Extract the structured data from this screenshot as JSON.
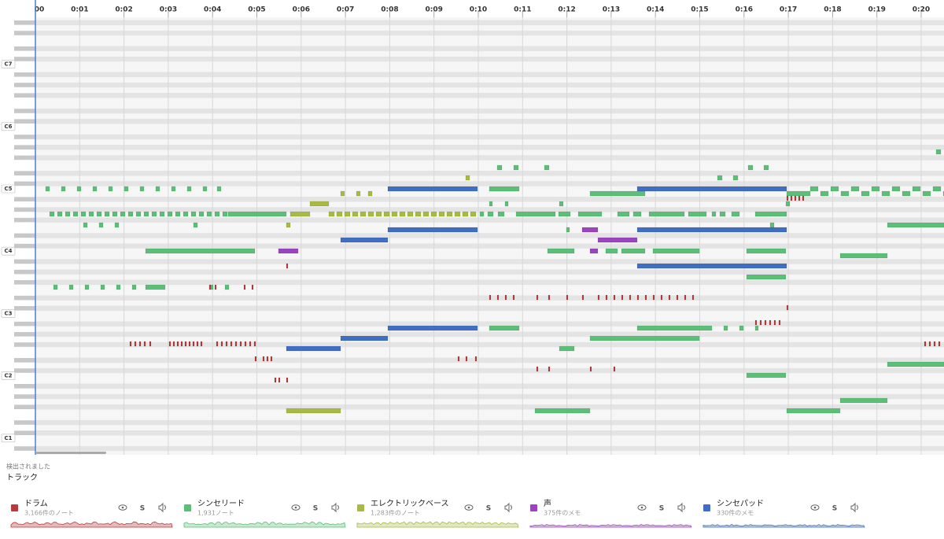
{
  "timeline": {
    "labels": [
      "00",
      "0:01",
      "0:02",
      "0:03",
      "0:04",
      "0:05",
      "0:06",
      "0:07",
      "0:08",
      "0:09",
      "0:10",
      "0:11",
      "0:12",
      "0:13",
      "0:14",
      "0:15",
      "0:16",
      "0:17",
      "0:18",
      "0:19",
      "0:20"
    ]
  },
  "keys": {
    "labels": [
      "C7",
      "C6",
      "C5",
      "C4",
      "C3",
      "C2",
      "C1"
    ]
  },
  "panel": {
    "caption": "検出されました",
    "title": "トラック"
  },
  "tracks": [
    {
      "name": "ドラム",
      "count": "3,166件のノート",
      "solo": "S"
    },
    {
      "name": "シンセリード",
      "count": "1,931ノート",
      "solo": "S"
    },
    {
      "name": "エレクトリックベース",
      "count": "1,283件のノート",
      "solo": "S"
    },
    {
      "name": "声",
      "count": "375件のメモ",
      "solo": "S"
    },
    {
      "name": "シンセパッド",
      "count": "330件のメモ",
      "solo": "S"
    }
  ]
}
